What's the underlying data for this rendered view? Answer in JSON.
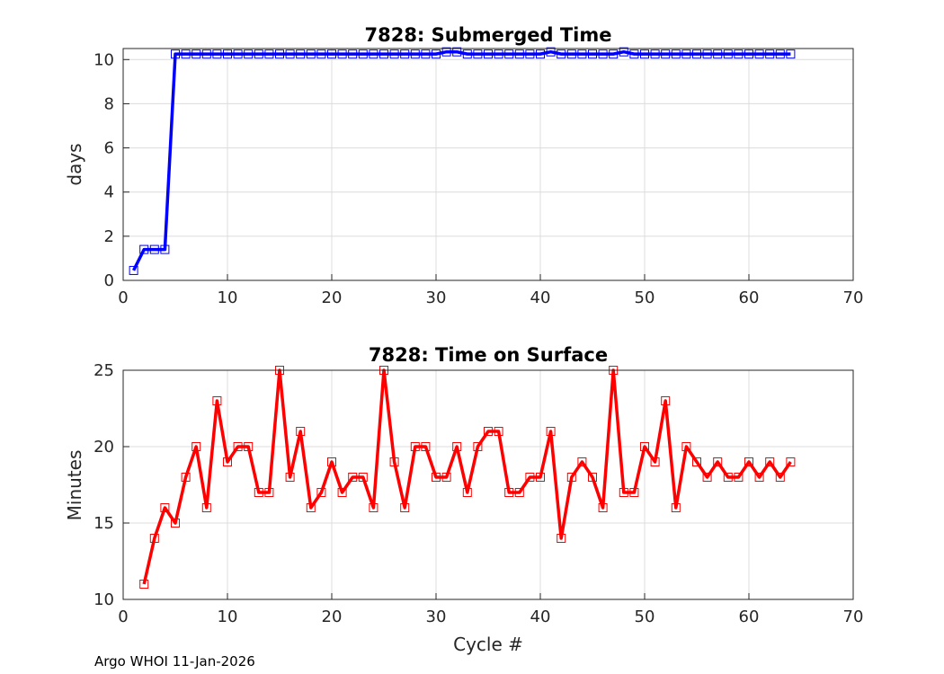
{
  "chart_data": [
    {
      "type": "line",
      "title": "7828: Submerged Time",
      "xlabel": "",
      "ylabel": "days",
      "xlim": [
        0,
        70
      ],
      "ylim": [
        0,
        10.5
      ],
      "xticks": [
        0,
        10,
        20,
        30,
        40,
        50,
        60,
        70
      ],
      "yticks": [
        0,
        2,
        4,
        6,
        8,
        10
      ],
      "grid": true,
      "color": "#0000ff",
      "series": [
        {
          "name": "Submerged Time",
          "x": [
            1,
            2,
            3,
            4,
            5,
            6,
            7,
            8,
            9,
            10,
            11,
            12,
            13,
            14,
            15,
            16,
            17,
            18,
            19,
            20,
            21,
            22,
            23,
            24,
            25,
            26,
            27,
            28,
            29,
            30,
            31,
            32,
            33,
            34,
            35,
            36,
            37,
            38,
            39,
            40,
            41,
            42,
            43,
            44,
            45,
            46,
            47,
            48,
            49,
            50,
            51,
            52,
            53,
            54,
            55,
            56,
            57,
            58,
            59,
            60,
            61,
            62,
            63,
            64
          ],
          "values": [
            0.45,
            1.4,
            1.4,
            1.4,
            10.25,
            10.25,
            10.25,
            10.25,
            10.25,
            10.25,
            10.25,
            10.25,
            10.25,
            10.25,
            10.25,
            10.25,
            10.25,
            10.25,
            10.25,
            10.25,
            10.25,
            10.25,
            10.25,
            10.25,
            10.25,
            10.25,
            10.25,
            10.25,
            10.25,
            10.25,
            10.35,
            10.35,
            10.25,
            10.25,
            10.25,
            10.25,
            10.25,
            10.25,
            10.25,
            10.25,
            10.35,
            10.25,
            10.25,
            10.25,
            10.25,
            10.25,
            10.25,
            10.35,
            10.25,
            10.25,
            10.25,
            10.25,
            10.25,
            10.25,
            10.25,
            10.25,
            10.25,
            10.25,
            10.25,
            10.25,
            10.25,
            10.25,
            10.25,
            10.25
          ]
        }
      ]
    },
    {
      "type": "line",
      "title": "7828: Time on Surface",
      "xlabel": "Cycle #",
      "ylabel": "Minutes",
      "xlim": [
        0,
        70
      ],
      "ylim": [
        10,
        25
      ],
      "xticks": [
        0,
        10,
        20,
        30,
        40,
        50,
        60,
        70
      ],
      "yticks": [
        10,
        15,
        20,
        25
      ],
      "grid": true,
      "color": "#ff0000",
      "series": [
        {
          "name": "Time on Surface",
          "x": [
            2,
            3,
            4,
            5,
            6,
            7,
            8,
            9,
            10,
            11,
            12,
            13,
            14,
            15,
            16,
            17,
            18,
            19,
            20,
            21,
            22,
            23,
            24,
            25,
            26,
            27,
            28,
            29,
            30,
            31,
            32,
            33,
            34,
            35,
            36,
            37,
            38,
            39,
            40,
            41,
            42,
            43,
            44,
            45,
            46,
            47,
            48,
            49,
            50,
            51,
            52,
            53,
            54,
            55,
            56,
            57,
            58,
            59,
            60,
            61,
            62,
            63,
            64
          ],
          "values": [
            11,
            14,
            16,
            15,
            18,
            20,
            16,
            23,
            19,
            20,
            20,
            17,
            17,
            25,
            18,
            21,
            16,
            17,
            19,
            17,
            18,
            18,
            16,
            25,
            19,
            16,
            20,
            20,
            18,
            18,
            20,
            17,
            20,
            21,
            21,
            17,
            17,
            18,
            18,
            21,
            14,
            18,
            19,
            18,
            16,
            25,
            17,
            17,
            20,
            19,
            23,
            16,
            20,
            19,
            18,
            19,
            18,
            18,
            19,
            18,
            19,
            18,
            19
          ]
        }
      ]
    }
  ],
  "footer": "Argo WHOI 11-Jan-2026"
}
